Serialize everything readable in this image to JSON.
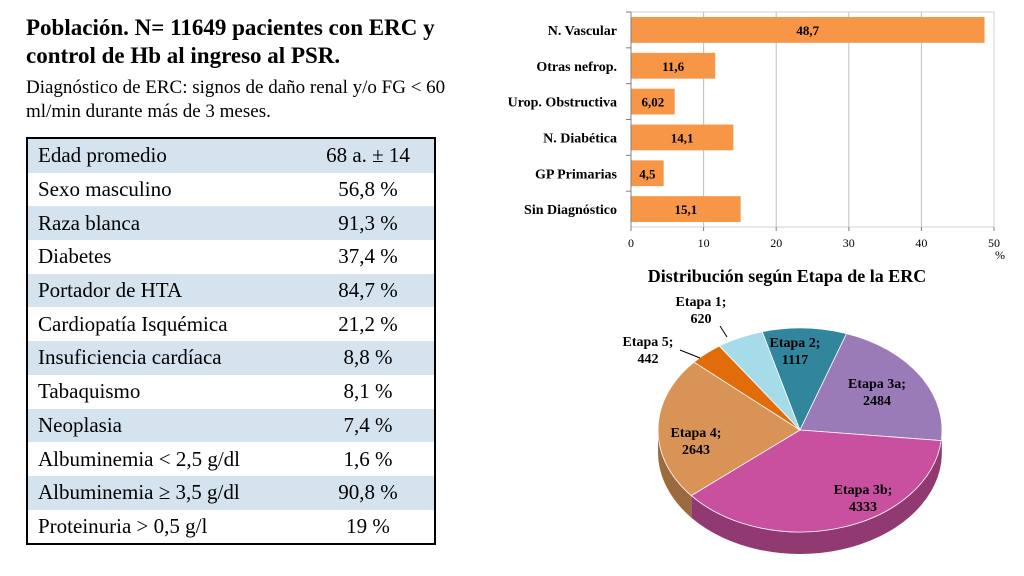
{
  "title": "Población. N= 11649 pacientes con ERC y control de Hb al ingreso al PSR.",
  "subtitle": "Diagnóstico de ERC: signos de daño renal  y/o FG < 60 ml/min durante más de 3 meses.",
  "table": {
    "rows": [
      {
        "label": "Edad promedio",
        "value": "68 a. ± 14"
      },
      {
        "label": "Sexo masculino",
        "value": "56,8 %"
      },
      {
        "label": "Raza blanca",
        "value": "91,3 %"
      },
      {
        "label": "Diabetes",
        "value": "37,4 %"
      },
      {
        "label": "Portador de HTA",
        "value": "84,7 %"
      },
      {
        "label": "Cardiopatía Isquémica",
        "value": "21,2 %"
      },
      {
        "label": "Insuficiencia cardíaca",
        "value": "8,8 %"
      },
      {
        "label": "Tabaquismo",
        "value": "8,1 %"
      },
      {
        "label": "Neoplasia",
        "value": "7,4 %"
      },
      {
        "label": "Albuminemia < 2,5 g/dl",
        "value": "1,6 %"
      },
      {
        "label": "Albuminemia ≥ 3,5 g/dl",
        "value": "90,8 %"
      },
      {
        "label": "Proteinuria > 0,5 g/l",
        "value": "19 %"
      }
    ]
  },
  "chart_data": [
    {
      "type": "bar",
      "orientation": "horizontal",
      "categories": [
        "N. Vascular",
        "Otras nefrop.",
        "Urop. Obstructiva",
        "N. Diabética",
        "GP Primarias",
        "Sin Diagnóstico"
      ],
      "values": [
        48.7,
        11.6,
        6.02,
        14.1,
        4.5,
        15.1
      ],
      "value_labels": [
        "48,7",
        "11,6",
        "6,02",
        "14,1",
        "4,5",
        "15,1"
      ],
      "xticks": [
        0,
        10,
        20,
        30,
        40,
        50
      ],
      "xlim": [
        0,
        50
      ],
      "xlabel": "%",
      "grid": true,
      "bar_color": "#f79646"
    },
    {
      "type": "pie",
      "title": "Distribución según Etapa de la ERC",
      "slices": [
        {
          "label": "Etapa 1;",
          "value": 620,
          "value_text": "620",
          "color": "#a6dbe9"
        },
        {
          "label": "Etapa 2;",
          "value": 1117,
          "value_text": "1117",
          "color": "#31859c"
        },
        {
          "label": "Etapa 3a;",
          "value": 2484,
          "value_text": "2484",
          "color": "#9b7ab8"
        },
        {
          "label": "Etapa 3b;",
          "value": 4333,
          "value_text": "4333",
          "color": "#c9509f"
        },
        {
          "label": "Etapa 4;",
          "value": 2643,
          "value_text": "2643",
          "color": "#d99357"
        },
        {
          "label": "Etapa 5;",
          "value": 442,
          "value_text": "442",
          "color": "#e36c0a"
        }
      ]
    }
  ]
}
